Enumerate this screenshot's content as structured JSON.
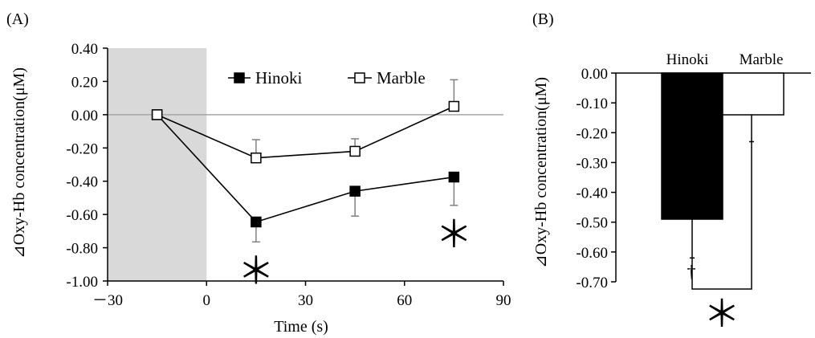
{
  "chart_data": [
    {
      "panel_label": "(A)",
      "type": "line",
      "xlabel": "Time (s)",
      "ylabel": "⊿Oxy-Hb concentration(μM)",
      "xlim": [
        -30,
        90
      ],
      "ylim": [
        -1.0,
        0.4
      ],
      "x_ticks": [
        -30,
        0,
        30,
        60,
        90
      ],
      "x_tick_labels": [
        "－30",
        "0",
        "30",
        "60",
        "90"
      ],
      "y_ticks": [
        0.4,
        0.2,
        0.0,
        -0.2,
        -0.4,
        -0.6,
        -0.8,
        -1.0
      ],
      "y_tick_labels": [
        "0.40",
        "0.20",
        "0.00",
        "-0.20",
        "-0.40",
        "-0.60",
        "-0.80",
        "-1.00"
      ],
      "shaded_region": {
        "x_start": -30,
        "x_end": 0,
        "color": "#d9d9d9"
      },
      "reference_line": {
        "y": 0,
        "color": "#a6a6a6"
      },
      "legend_position": "top-center",
      "series": [
        {
          "name": "Hinoki",
          "marker": "filled-square",
          "color": "#000000",
          "x": [
            -15,
            15,
            45,
            75
          ],
          "y": [
            0.0,
            -0.645,
            -0.46,
            -0.375
          ],
          "error": [
            0,
            0.12,
            0.15,
            0.17
          ],
          "error_direction": "down"
        },
        {
          "name": "Marble",
          "marker": "open-square",
          "color": "#000000",
          "x": [
            -15,
            15,
            45,
            75
          ],
          "y": [
            0.0,
            -0.26,
            -0.22,
            0.05
          ],
          "error": [
            0,
            0.11,
            0.075,
            0.16
          ],
          "error_direction": "up"
        }
      ],
      "annotations": [
        {
          "text": "＊",
          "x": 15,
          "position": "below"
        },
        {
          "text": "＊",
          "x": 75,
          "position": "below"
        }
      ]
    },
    {
      "panel_label": "(B)",
      "type": "bar",
      "ylabel": "⊿Oxy-Hb concentration(μM)",
      "categories": [
        "Hinoki",
        "Marble"
      ],
      "values": [
        -0.49,
        -0.14
      ],
      "errors": [
        0.13,
        0.09
      ],
      "bar_colors": [
        "#000000",
        "#ffffff"
      ],
      "ylim": [
        -0.7,
        0.0
      ],
      "y_ticks": [
        0.0,
        -0.1,
        -0.2,
        -0.3,
        -0.4,
        -0.5,
        -0.6,
        -0.7
      ],
      "y_tick_labels": [
        "0.00",
        "-0.10",
        "-0.20",
        "-0.30",
        "-0.40",
        "-0.50",
        "-0.60",
        "-0.70"
      ],
      "annotations": [
        {
          "text": "†",
          "category": "Hinoki"
        },
        {
          "text": "＊",
          "type": "significance-bracket",
          "between": [
            "Hinoki",
            "Marble"
          ]
        }
      ]
    }
  ]
}
